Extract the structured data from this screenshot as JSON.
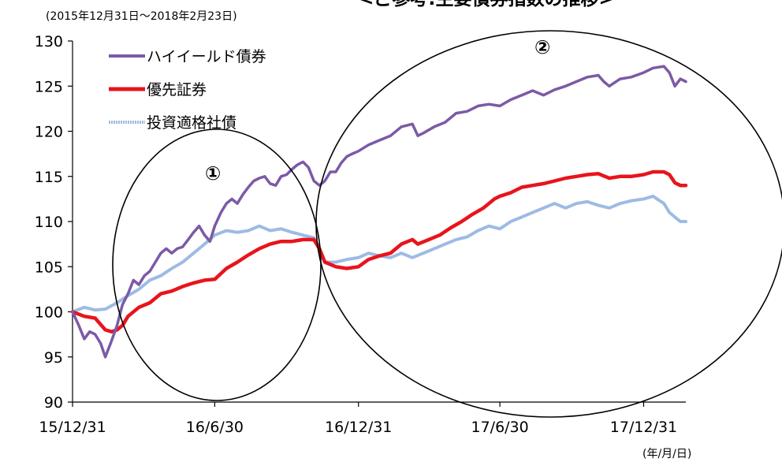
{
  "chart_data": {
    "type": "line",
    "title": "<ご参考:主要債券指数の推移>",
    "subtitle": "(2015年12月31日～2018年2月23日)",
    "xlabel": "",
    "ylabel": "",
    "x_unit_label": "(年/月/日)",
    "ylim": [
      90,
      130
    ],
    "yticks": [
      90,
      95,
      100,
      105,
      110,
      115,
      120,
      125,
      130
    ],
    "xticks": [
      "15/12/31",
      "16/6/30",
      "16/12/31",
      "17/6/30",
      "17/12/31"
    ],
    "xrange": [
      "2015-12-31",
      "2018-02-23"
    ],
    "legend_position": "top-left",
    "annotations": [
      "①",
      "②"
    ],
    "series": [
      {
        "name": "ハイイールド債券",
        "color": "#7b5aa6",
        "points": [
          [
            "2015-12-31",
            100.0
          ],
          [
            "2016-01-08",
            98.5
          ],
          [
            "2016-01-15",
            97.0
          ],
          [
            "2016-01-22",
            97.8
          ],
          [
            "2016-01-29",
            97.5
          ],
          [
            "2016-02-05",
            96.5
          ],
          [
            "2016-02-11",
            95.0
          ],
          [
            "2016-02-19",
            96.8
          ],
          [
            "2016-02-26",
            98.5
          ],
          [
            "2016-03-04",
            100.8
          ],
          [
            "2016-03-11",
            102.0
          ],
          [
            "2016-03-18",
            103.5
          ],
          [
            "2016-03-25",
            103.0
          ],
          [
            "2016-04-01",
            104.0
          ],
          [
            "2016-04-08",
            104.5
          ],
          [
            "2016-04-15",
            105.5
          ],
          [
            "2016-04-22",
            106.5
          ],
          [
            "2016-04-29",
            107.0
          ],
          [
            "2016-05-06",
            106.5
          ],
          [
            "2016-05-13",
            107.0
          ],
          [
            "2016-05-20",
            107.2
          ],
          [
            "2016-05-27",
            108.0
          ],
          [
            "2016-06-03",
            108.8
          ],
          [
            "2016-06-10",
            109.5
          ],
          [
            "2016-06-17",
            108.5
          ],
          [
            "2016-06-24",
            107.8
          ],
          [
            "2016-06-30",
            109.5
          ],
          [
            "2016-07-08",
            111.0
          ],
          [
            "2016-07-15",
            112.0
          ],
          [
            "2016-07-22",
            112.5
          ],
          [
            "2016-07-29",
            112.0
          ],
          [
            "2016-08-05",
            113.0
          ],
          [
            "2016-08-12",
            113.8
          ],
          [
            "2016-08-19",
            114.5
          ],
          [
            "2016-08-26",
            114.8
          ],
          [
            "2016-09-02",
            115.0
          ],
          [
            "2016-09-09",
            114.2
          ],
          [
            "2016-09-16",
            114.0
          ],
          [
            "2016-09-23",
            115.0
          ],
          [
            "2016-09-30",
            115.2
          ],
          [
            "2016-10-07",
            115.8
          ],
          [
            "2016-10-14",
            116.3
          ],
          [
            "2016-10-21",
            116.6
          ],
          [
            "2016-10-28",
            116.0
          ],
          [
            "2016-11-04",
            114.5
          ],
          [
            "2016-11-11",
            114.0
          ],
          [
            "2016-11-18",
            114.5
          ],
          [
            "2016-11-25",
            115.5
          ],
          [
            "2016-12-02",
            115.5
          ],
          [
            "2016-12-09",
            116.5
          ],
          [
            "2016-12-16",
            117.2
          ],
          [
            "2016-12-23",
            117.5
          ],
          [
            "2016-12-31",
            117.8
          ],
          [
            "2017-01-13",
            118.5
          ],
          [
            "2017-01-27",
            119.0
          ],
          [
            "2017-02-10",
            119.5
          ],
          [
            "2017-02-24",
            120.5
          ],
          [
            "2017-03-10",
            120.8
          ],
          [
            "2017-03-17",
            119.5
          ],
          [
            "2017-03-24",
            119.8
          ],
          [
            "2017-04-07",
            120.5
          ],
          [
            "2017-04-21",
            121.0
          ],
          [
            "2017-05-05",
            122.0
          ],
          [
            "2017-05-19",
            122.2
          ],
          [
            "2017-06-02",
            122.8
          ],
          [
            "2017-06-16",
            123.0
          ],
          [
            "2017-06-30",
            122.8
          ],
          [
            "2017-07-14",
            123.5
          ],
          [
            "2017-07-28",
            124.0
          ],
          [
            "2017-08-11",
            124.5
          ],
          [
            "2017-08-25",
            124.0
          ],
          [
            "2017-09-08",
            124.6
          ],
          [
            "2017-09-22",
            125.0
          ],
          [
            "2017-10-06",
            125.5
          ],
          [
            "2017-10-20",
            126.0
          ],
          [
            "2017-11-03",
            126.2
          ],
          [
            "2017-11-10",
            125.5
          ],
          [
            "2017-11-17",
            125.0
          ],
          [
            "2017-12-01",
            125.8
          ],
          [
            "2017-12-15",
            126.0
          ],
          [
            "2017-12-31",
            126.5
          ],
          [
            "2018-01-12",
            127.0
          ],
          [
            "2018-01-26",
            127.2
          ],
          [
            "2018-02-02",
            126.5
          ],
          [
            "2018-02-09",
            125.0
          ],
          [
            "2018-02-16",
            125.8
          ],
          [
            "2018-02-23",
            125.5
          ]
        ]
      },
      {
        "name": "優先証券",
        "color": "#e8141c",
        "points": [
          [
            "2015-12-31",
            100.0
          ],
          [
            "2016-01-15",
            99.5
          ],
          [
            "2016-01-29",
            99.3
          ],
          [
            "2016-02-11",
            98.0
          ],
          [
            "2016-02-19",
            97.8
          ],
          [
            "2016-02-26",
            98.0
          ],
          [
            "2016-03-04",
            98.5
          ],
          [
            "2016-03-11",
            99.5
          ],
          [
            "2016-03-25",
            100.5
          ],
          [
            "2016-04-08",
            101.0
          ],
          [
            "2016-04-22",
            102.0
          ],
          [
            "2016-05-06",
            102.3
          ],
          [
            "2016-05-20",
            102.8
          ],
          [
            "2016-06-03",
            103.2
          ],
          [
            "2016-06-17",
            103.5
          ],
          [
            "2016-06-30",
            103.6
          ],
          [
            "2016-07-15",
            104.8
          ],
          [
            "2016-07-29",
            105.5
          ],
          [
            "2016-08-12",
            106.3
          ],
          [
            "2016-08-26",
            107.0
          ],
          [
            "2016-09-09",
            107.5
          ],
          [
            "2016-09-23",
            107.8
          ],
          [
            "2016-10-07",
            107.8
          ],
          [
            "2016-10-21",
            108.0
          ],
          [
            "2016-11-04",
            108.0
          ],
          [
            "2016-11-11",
            107.0
          ],
          [
            "2016-11-18",
            105.5
          ],
          [
            "2016-12-02",
            105.0
          ],
          [
            "2016-12-16",
            104.8
          ],
          [
            "2016-12-31",
            105.0
          ],
          [
            "2017-01-13",
            105.8
          ],
          [
            "2017-01-27",
            106.2
          ],
          [
            "2017-02-10",
            106.5
          ],
          [
            "2017-02-24",
            107.5
          ],
          [
            "2017-03-10",
            108.0
          ],
          [
            "2017-03-17",
            107.5
          ],
          [
            "2017-03-31",
            108.0
          ],
          [
            "2017-04-14",
            108.5
          ],
          [
            "2017-04-28",
            109.3
          ],
          [
            "2017-05-12",
            110.0
          ],
          [
            "2017-05-26",
            110.8
          ],
          [
            "2017-06-09",
            111.5
          ],
          [
            "2017-06-23",
            112.5
          ],
          [
            "2017-06-30",
            112.8
          ],
          [
            "2017-07-14",
            113.2
          ],
          [
            "2017-07-28",
            113.8
          ],
          [
            "2017-08-11",
            114.0
          ],
          [
            "2017-08-25",
            114.2
          ],
          [
            "2017-09-08",
            114.5
          ],
          [
            "2017-09-22",
            114.8
          ],
          [
            "2017-10-06",
            115.0
          ],
          [
            "2017-10-20",
            115.2
          ],
          [
            "2017-11-03",
            115.3
          ],
          [
            "2017-11-17",
            114.8
          ],
          [
            "2017-12-01",
            115.0
          ],
          [
            "2017-12-15",
            115.0
          ],
          [
            "2017-12-31",
            115.2
          ],
          [
            "2018-01-12",
            115.5
          ],
          [
            "2018-01-26",
            115.5
          ],
          [
            "2018-02-02",
            115.2
          ],
          [
            "2018-02-09",
            114.3
          ],
          [
            "2018-02-16",
            114.0
          ],
          [
            "2018-02-23",
            114.0
          ]
        ]
      },
      {
        "name": "投資適格社債",
        "color": "#9dbbe3",
        "points": [
          [
            "2015-12-31",
            100.0
          ],
          [
            "2016-01-15",
            100.5
          ],
          [
            "2016-01-29",
            100.2
          ],
          [
            "2016-02-11",
            100.3
          ],
          [
            "2016-02-26",
            101.0
          ],
          [
            "2016-03-11",
            101.8
          ],
          [
            "2016-03-25",
            102.5
          ],
          [
            "2016-04-08",
            103.5
          ],
          [
            "2016-04-22",
            104.0
          ],
          [
            "2016-05-06",
            104.8
          ],
          [
            "2016-05-20",
            105.5
          ],
          [
            "2016-06-03",
            106.5
          ],
          [
            "2016-06-17",
            107.5
          ],
          [
            "2016-06-30",
            108.5
          ],
          [
            "2016-07-15",
            109.0
          ],
          [
            "2016-07-29",
            108.8
          ],
          [
            "2016-08-12",
            109.0
          ],
          [
            "2016-08-26",
            109.5
          ],
          [
            "2016-09-09",
            109.0
          ],
          [
            "2016-09-23",
            109.2
          ],
          [
            "2016-10-07",
            108.8
          ],
          [
            "2016-10-21",
            108.5
          ],
          [
            "2016-11-04",
            108.2
          ],
          [
            "2016-11-11",
            107.0
          ],
          [
            "2016-11-18",
            105.5
          ],
          [
            "2016-12-02",
            105.5
          ],
          [
            "2016-12-16",
            105.8
          ],
          [
            "2016-12-31",
            106.0
          ],
          [
            "2017-01-13",
            106.5
          ],
          [
            "2017-01-27",
            106.2
          ],
          [
            "2017-02-10",
            106.0
          ],
          [
            "2017-02-24",
            106.5
          ],
          [
            "2017-03-10",
            106.0
          ],
          [
            "2017-03-24",
            106.5
          ],
          [
            "2017-04-07",
            107.0
          ],
          [
            "2017-04-21",
            107.5
          ],
          [
            "2017-05-05",
            108.0
          ],
          [
            "2017-05-19",
            108.3
          ],
          [
            "2017-06-02",
            109.0
          ],
          [
            "2017-06-16",
            109.5
          ],
          [
            "2017-06-30",
            109.2
          ],
          [
            "2017-07-14",
            110.0
          ],
          [
            "2017-07-28",
            110.5
          ],
          [
            "2017-08-11",
            111.0
          ],
          [
            "2017-08-25",
            111.5
          ],
          [
            "2017-09-08",
            112.0
          ],
          [
            "2017-09-22",
            111.5
          ],
          [
            "2017-10-06",
            112.0
          ],
          [
            "2017-10-20",
            112.2
          ],
          [
            "2017-11-03",
            111.8
          ],
          [
            "2017-11-17",
            111.5
          ],
          [
            "2017-12-01",
            112.0
          ],
          [
            "2017-12-15",
            112.3
          ],
          [
            "2017-12-31",
            112.5
          ],
          [
            "2018-01-12",
            112.8
          ],
          [
            "2018-01-26",
            112.0
          ],
          [
            "2018-02-02",
            111.0
          ],
          [
            "2018-02-09",
            110.5
          ],
          [
            "2018-02-16",
            110.0
          ],
          [
            "2018-02-23",
            110.0
          ]
        ]
      }
    ]
  }
}
